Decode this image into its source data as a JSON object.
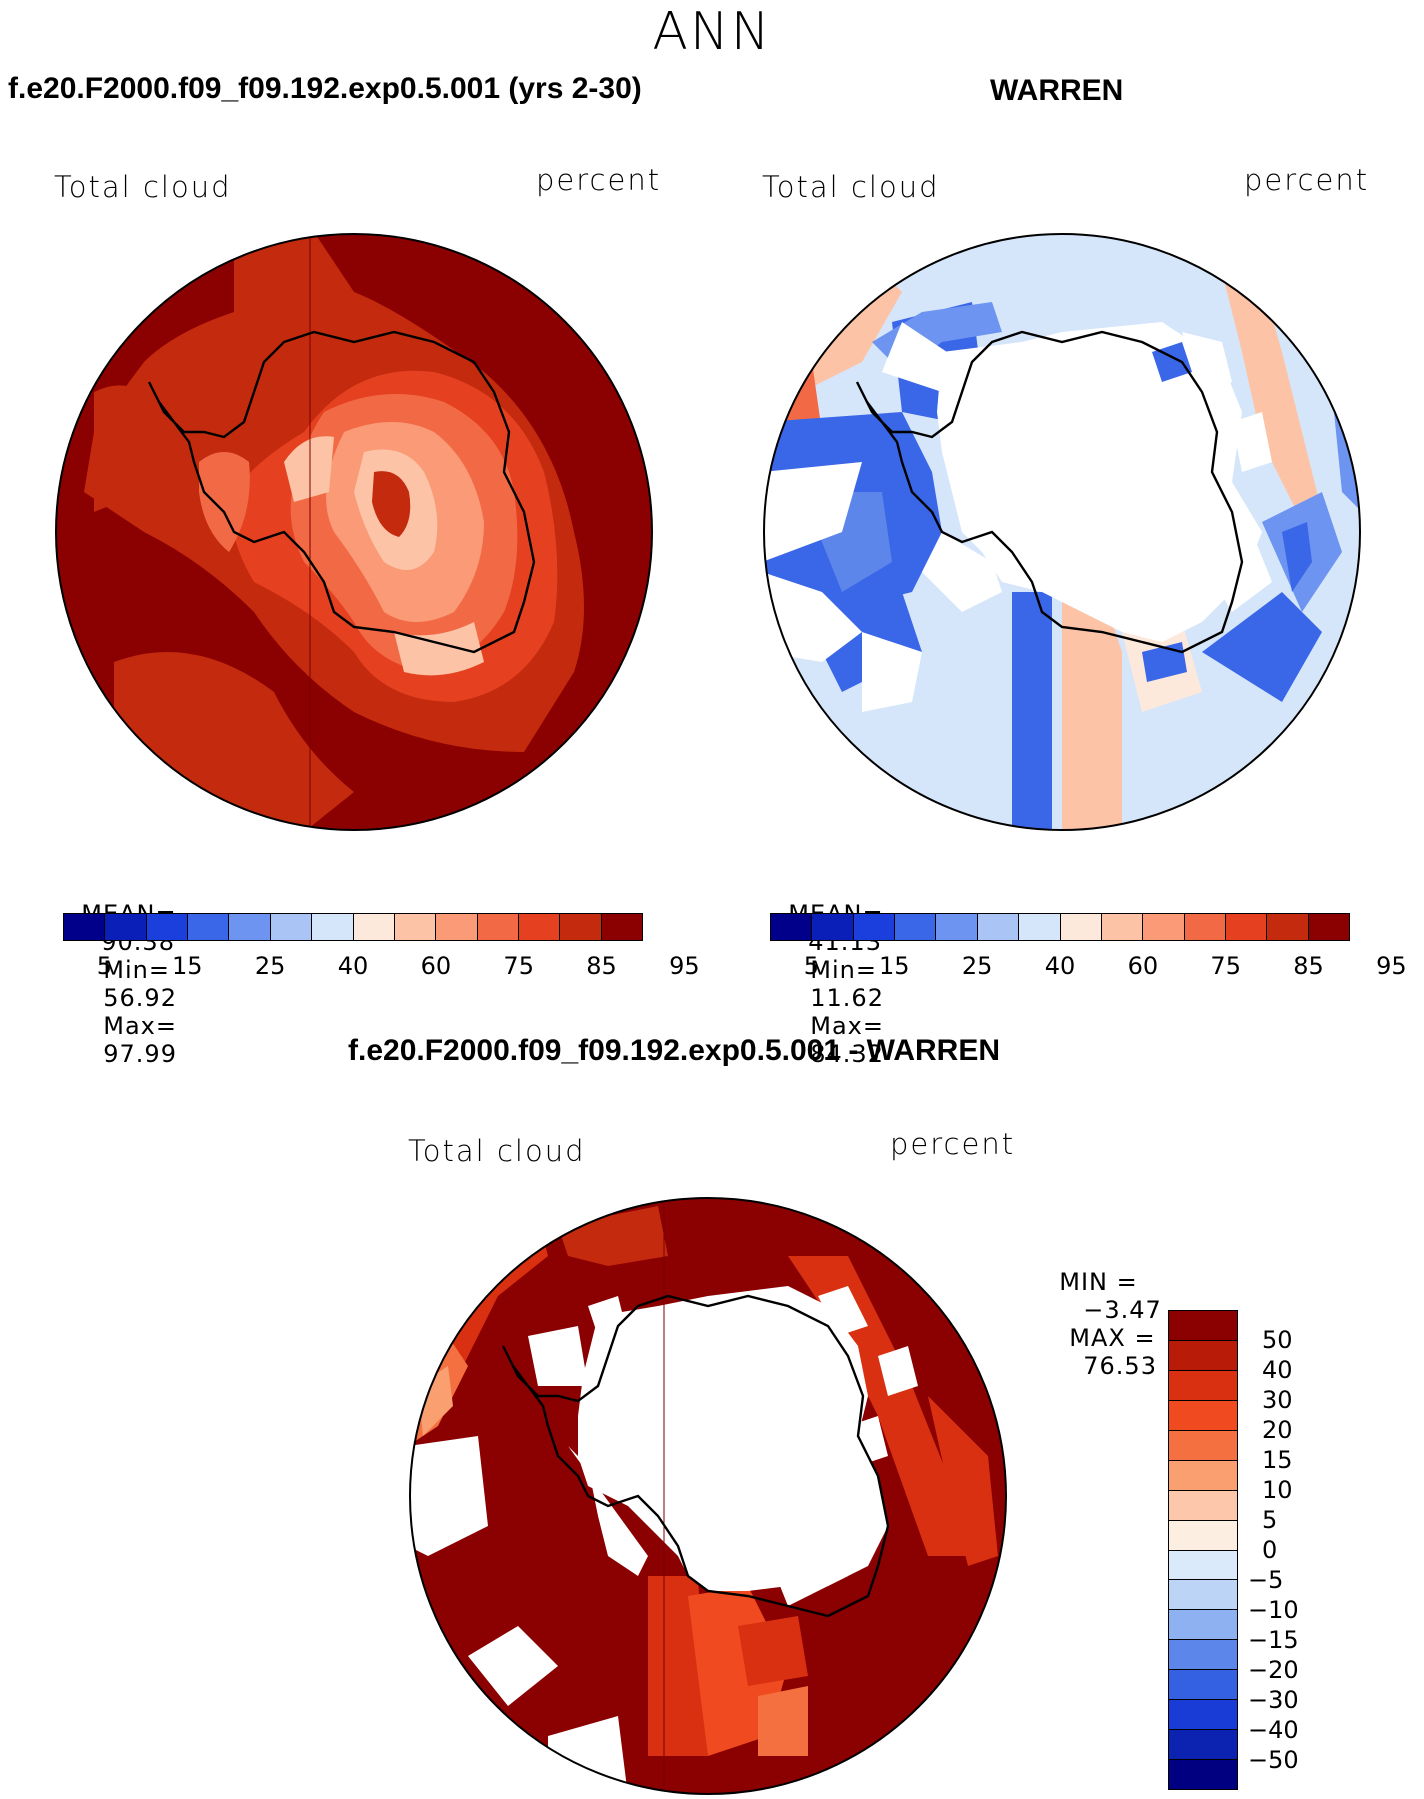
{
  "season": "ANN",
  "panels": [
    {
      "id": "model",
      "title": "f.e20.F2000.f09_f09.192.exp0.5.001 (yrs 2-30)",
      "variable": "Total cloud",
      "units": "percent",
      "stats": {
        "mean_label": "MEAN=",
        "mean": "90.38",
        "min_label": "Min=",
        "min": "56.92",
        "max_label": "Max=",
        "max": "97.99"
      }
    },
    {
      "id": "obs",
      "title": "WARREN",
      "variable": "Total cloud",
      "units": "percent",
      "stats": {
        "mean_label": "MEAN=",
        "mean": "41.13",
        "min_label": "Min=",
        "min": "11.62",
        "max_label": "Max=",
        "max": "84.32"
      }
    }
  ],
  "diff_panel": {
    "title": "f.e20.F2000.f09_f09.192.exp0.5.001 - WARREN",
    "variable": "Total cloud",
    "units": "percent",
    "stats": {
      "min_label": "MIN =",
      "min": "−3.47",
      "max_label": "MAX =",
      "max": "76.53"
    }
  },
  "abs_colorbar": {
    "colors": [
      "#00008b",
      "#0a1fb8",
      "#1a3fdc",
      "#3a66e8",
      "#6d94f0",
      "#a9c4f5",
      "#d6e6fa",
      "#fde8dc",
      "#fcc3a6",
      "#fa9a76",
      "#f26a45",
      "#e54020",
      "#c42a0e",
      "#8b0000"
    ],
    "tick_labels": [
      "5",
      "15",
      "25",
      "40",
      "60",
      "75",
      "85",
      "95"
    ]
  },
  "diff_colorbar": {
    "colors": [
      "#8b0000",
      "#b81c08",
      "#d83010",
      "#f04a20",
      "#f57040",
      "#faa070",
      "#fcc7aa",
      "#fdeee2",
      "#dbeafb",
      "#bcd4f6",
      "#8db1f1",
      "#5c86ea",
      "#3460e2",
      "#1a3cd6",
      "#0c22b0",
      "#000080"
    ],
    "tick_labels": [
      "50",
      "40",
      "30",
      "20",
      "15",
      "10",
      "5",
      "0",
      "−5",
      "−10",
      "−15",
      "−20",
      "−30",
      "−40",
      "−50"
    ]
  }
}
